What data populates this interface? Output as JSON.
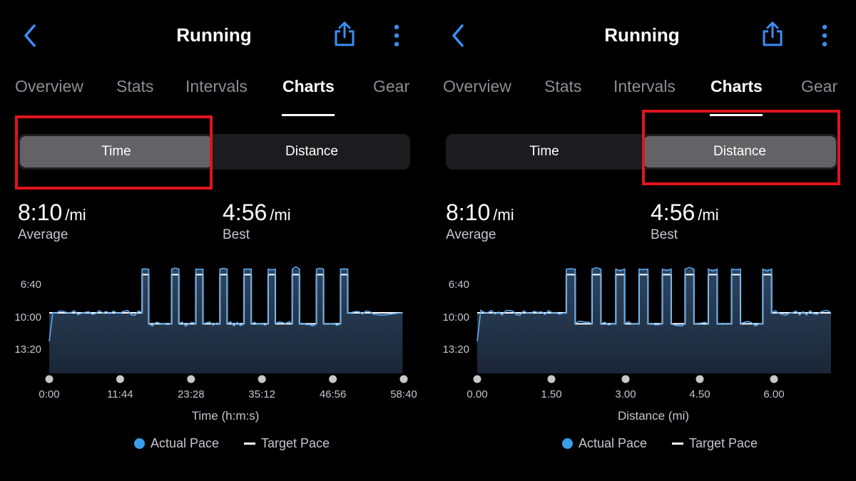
{
  "colors": {
    "accent": "#3a8ef6",
    "pace_line": "#5aa8f0",
    "target_line": "#ffffff",
    "highlight": "#e0141e",
    "fill": "#24344a"
  },
  "panels": [
    {
      "title": "Running",
      "tabs": [
        "Overview",
        "Stats",
        "Intervals",
        "Charts",
        "Gear"
      ],
      "active_tab": "Charts",
      "segments": [
        "Time",
        "Distance"
      ],
      "selected_segment": "Time",
      "average": {
        "value": "8:10",
        "unit": "/mi",
        "label": "Average"
      },
      "best": {
        "value": "4:56",
        "unit": "/mi",
        "label": "Best"
      },
      "legend": {
        "actual": "Actual Pace",
        "target": "Target Pace"
      }
    },
    {
      "title": "Running",
      "tabs": [
        "Overview",
        "Stats",
        "Intervals",
        "Charts",
        "Gear"
      ],
      "active_tab": "Charts",
      "segments": [
        "Time",
        "Distance"
      ],
      "selected_segment": "Distance",
      "average": {
        "value": "8:10",
        "unit": "/mi",
        "label": "Average"
      },
      "best": {
        "value": "4:56",
        "unit": "/mi",
        "label": "Best"
      },
      "legend": {
        "actual": "Actual Pace",
        "target": "Target Pace"
      }
    }
  ],
  "chart_data": [
    {
      "type": "line",
      "xlabel": "Time (h:m:s)",
      "ylabel": "",
      "x_tick_labels": [
        "0:00",
        "11:44",
        "23:28",
        "35:12",
        "46:56",
        "58:40"
      ],
      "y_tick_labels": [
        "6:40",
        "10:00",
        "13:20"
      ],
      "xlim": [
        0,
        58.67
      ],
      "ylim_pace_min_per_mi": [
        4.5,
        16.5
      ],
      "grid": false,
      "legend": "bottom",
      "series": [
        {
          "name": "Actual Pace",
          "segments": [
            [
              0,
              9.0
            ],
            [
              15.4,
              5.0
            ],
            [
              16.5,
              10.0
            ],
            [
              20.3,
              5.0
            ],
            [
              21.5,
              10.0
            ],
            [
              24.3,
              5.0
            ],
            [
              25.5,
              10.0
            ],
            [
              28.3,
              5.0
            ],
            [
              29.5,
              10.0
            ],
            [
              32.3,
              5.0
            ],
            [
              33.5,
              10.0
            ],
            [
              36.3,
              5.0
            ],
            [
              37.5,
              10.0
            ],
            [
              40.3,
              5.0
            ],
            [
              41.5,
              10.0
            ],
            [
              44.3,
              5.0
            ],
            [
              45.5,
              10.0
            ],
            [
              48.3,
              5.0
            ],
            [
              49.5,
              9.0
            ],
            [
              58.6,
              9.0
            ]
          ]
        },
        {
          "name": "Target Pace",
          "segments": [
            [
              0,
              9.0
            ],
            [
              15.4,
              5.5
            ],
            [
              16.5,
              10.0
            ],
            [
              20.3,
              5.5
            ],
            [
              21.5,
              10.0
            ],
            [
              24.3,
              5.5
            ],
            [
              25.5,
              10.0
            ],
            [
              28.3,
              5.5
            ],
            [
              29.5,
              10.0
            ],
            [
              32.3,
              5.5
            ],
            [
              33.5,
              10.0
            ],
            [
              36.3,
              5.5
            ],
            [
              37.5,
              10.0
            ],
            [
              40.3,
              5.5
            ],
            [
              41.5,
              10.0
            ],
            [
              44.3,
              5.5
            ],
            [
              45.5,
              10.0
            ],
            [
              48.3,
              5.5
            ],
            [
              49.5,
              9.0
            ],
            [
              58.6,
              9.0
            ]
          ]
        }
      ]
    },
    {
      "type": "line",
      "xlabel": "Distance (mi)",
      "ylabel": "",
      "x_tick_labels": [
        "0.00",
        "1.50",
        "3.00",
        "4.50",
        "6.00"
      ],
      "y_tick_labels": [
        "6:40",
        "10:00",
        "13:20"
      ],
      "xlim": [
        0,
        7.15
      ],
      "ylim_pace_min_per_mi": [
        4.5,
        16.5
      ],
      "grid": false,
      "legend": "bottom",
      "series": [
        {
          "name": "Actual Pace",
          "segments": [
            [
              0,
              9.0
            ],
            [
              1.8,
              5.0
            ],
            [
              1.98,
              10.0
            ],
            [
              2.32,
              5.0
            ],
            [
              2.5,
              10.0
            ],
            [
              2.8,
              5.0
            ],
            [
              2.98,
              10.0
            ],
            [
              3.27,
              5.0
            ],
            [
              3.45,
              10.0
            ],
            [
              3.74,
              5.0
            ],
            [
              3.92,
              10.0
            ],
            [
              4.2,
              5.0
            ],
            [
              4.38,
              10.0
            ],
            [
              4.67,
              5.0
            ],
            [
              4.85,
              10.0
            ],
            [
              5.14,
              5.0
            ],
            [
              5.32,
              10.0
            ],
            [
              5.77,
              5.0
            ],
            [
              5.95,
              9.0
            ],
            [
              7.15,
              9.0
            ]
          ]
        },
        {
          "name": "Target Pace",
          "segments": [
            [
              0,
              9.0
            ],
            [
              1.8,
              5.5
            ],
            [
              1.98,
              10.0
            ],
            [
              2.32,
              5.5
            ],
            [
              2.5,
              10.0
            ],
            [
              2.8,
              5.5
            ],
            [
              2.98,
              10.0
            ],
            [
              3.27,
              5.5
            ],
            [
              3.45,
              10.0
            ],
            [
              3.74,
              5.5
            ],
            [
              3.92,
              10.0
            ],
            [
              4.2,
              5.5
            ],
            [
              4.38,
              10.0
            ],
            [
              4.67,
              5.5
            ],
            [
              4.85,
              10.0
            ],
            [
              5.14,
              5.5
            ],
            [
              5.32,
              10.0
            ],
            [
              5.77,
              5.5
            ],
            [
              5.95,
              9.0
            ],
            [
              7.15,
              9.0
            ]
          ]
        }
      ]
    }
  ]
}
